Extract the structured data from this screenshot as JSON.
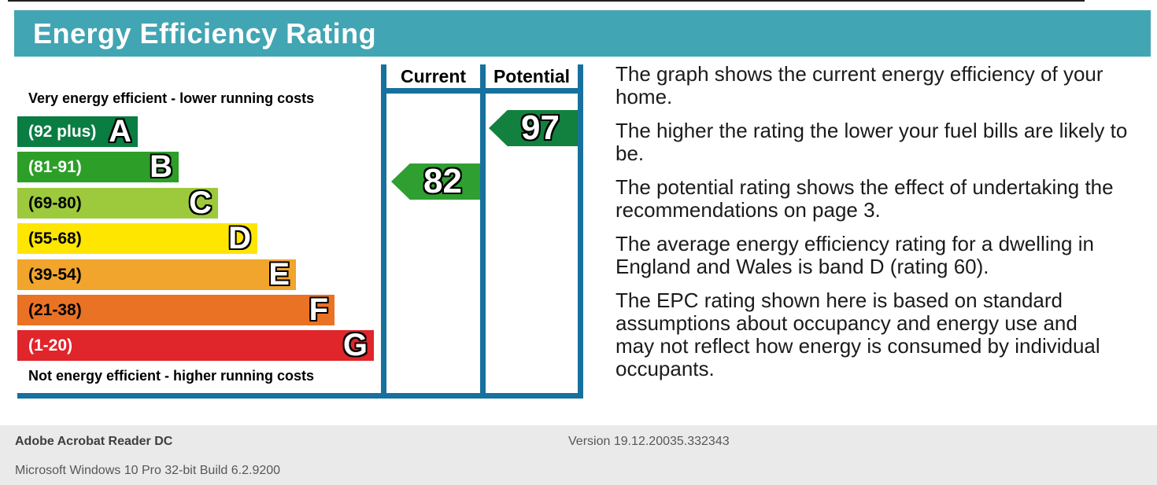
{
  "header": {
    "title": "Energy Efficiency Rating"
  },
  "colors": {
    "banner_bg": "#42a5b3",
    "banner_text": "#ffffff",
    "chart_border": "#17719e",
    "footer_bg": "#eaeaea",
    "footer_title_text": "#3e3e3e",
    "footer_text": "#575757",
    "body_text": "#1b1b1b"
  },
  "chart": {
    "top_label": "Very energy efficient - lower running costs",
    "bottom_label": "Not energy efficient - higher running costs",
    "columns": {
      "current": "Current",
      "potential": "Potential"
    },
    "bands": [
      {
        "letter": "A",
        "range": "(92 plus)",
        "color": "#0a7d42",
        "text_color": "#ffffff"
      },
      {
        "letter": "B",
        "range": "(81-91)",
        "color": "#2d9f29",
        "text_color": "#ffffff"
      },
      {
        "letter": "C",
        "range": "(69-80)",
        "color": "#9dca3c",
        "text_color": "#000000"
      },
      {
        "letter": "D",
        "range": "(55-68)",
        "color": "#fee600",
        "text_color": "#000000"
      },
      {
        "letter": "E",
        "range": "(39-54)",
        "color": "#f1a52c",
        "text_color": "#000000"
      },
      {
        "letter": "F",
        "range": "(21-38)",
        "color": "#ea7225",
        "text_color": "#000000"
      },
      {
        "letter": "G",
        "range": "(1-20)",
        "color": "#e0252b",
        "text_color": "#ffffff"
      }
    ],
    "current": {
      "value": "82",
      "color": "#2f9f31",
      "band": "B"
    },
    "potential": {
      "value": "97",
      "color": "#12813f",
      "band": "A"
    }
  },
  "chart_data": {
    "type": "bar",
    "title": "Energy Efficiency Rating",
    "categories": [
      "A",
      "B",
      "C",
      "D",
      "E",
      "F",
      "G"
    ],
    "band_ranges": [
      "92 plus",
      "81-91",
      "69-80",
      "55-68",
      "39-54",
      "21-38",
      "1-20"
    ],
    "band_colors": [
      "#0a7d42",
      "#2d9f29",
      "#9dca3c",
      "#fee600",
      "#f1a52c",
      "#ea7225",
      "#e0252b"
    ],
    "series": [
      {
        "name": "Current",
        "value": 82,
        "band": "B"
      },
      {
        "name": "Potential",
        "value": 97,
        "band": "A"
      }
    ],
    "scale_range": [
      1,
      100
    ],
    "annotations": {
      "top": "Very energy efficient - lower running costs",
      "bottom": "Not energy efficient - higher running costs"
    },
    "legend_position": "top-right-columns",
    "grid": false
  },
  "description": {
    "paragraphs": [
      "The graph shows the current energy efficiency of your\nhome.",
      "The higher the rating the lower your fuel bills are likely to\nbe.",
      "The potential rating shows the effect of undertaking the\nrecommendations on page 3.",
      "The average energy efficiency rating for a dwelling in\nEngland and Wales is band D (rating 60).",
      "The EPC rating shown here is based on standard\nassumptions about occupancy and energy use and\nmay not reflect how energy is consumed by individual\noccupants."
    ]
  },
  "footer": {
    "app_name": "Adobe Acrobat Reader DC",
    "version": "Version 19.12.20035.332343",
    "os": "Microsoft Windows 10 Pro 32-bit Build 6.2.9200"
  }
}
